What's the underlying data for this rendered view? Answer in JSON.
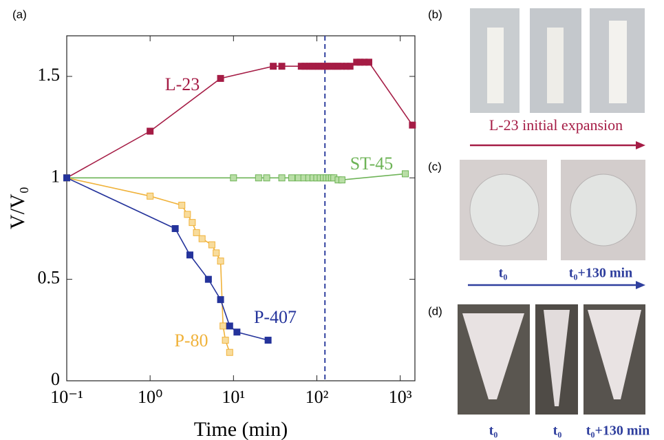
{
  "chart_data": {
    "type": "line",
    "panel_label": "(a)",
    "xlabel": "Time (min)",
    "ylabel": "V/V₀",
    "xscale": "log",
    "xlim": [
      0.1,
      1500
    ],
    "ylim": [
      0,
      1.7
    ],
    "xticks": [
      {
        "value": 0.1,
        "label": "10⁻¹"
      },
      {
        "value": 1,
        "label": "10⁰"
      },
      {
        "value": 10,
        "label": "10¹"
      },
      {
        "value": 100,
        "label": "10²"
      },
      {
        "value": 1000,
        "label": "10³"
      }
    ],
    "yticks": [
      0,
      0.5,
      1,
      1.5
    ],
    "vline_x": 125,
    "series": [
      {
        "name": "L-23",
        "color": "#a51c45",
        "marker_fill": "#a51c45",
        "x": [
          0.1,
          1,
          7,
          30,
          38,
          65,
          72,
          80,
          88,
          96,
          105,
          115,
          125,
          135,
          150,
          165,
          180,
          200,
          225,
          250,
          300,
          330,
          370,
          420,
          1400
        ],
        "values": [
          1,
          1.23,
          1.49,
          1.55,
          1.55,
          1.55,
          1.55,
          1.55,
          1.55,
          1.55,
          1.55,
          1.55,
          1.55,
          1.55,
          1.55,
          1.55,
          1.55,
          1.55,
          1.55,
          1.55,
          1.57,
          1.57,
          1.57,
          1.57,
          1.26
        ]
      },
      {
        "name": "ST-45",
        "color": "#6db356",
        "marker_fill": "#b9dea6",
        "x": [
          0.1,
          10,
          20,
          25,
          38,
          50,
          60,
          70,
          80,
          90,
          100,
          110,
          120,
          130,
          140,
          150,
          160,
          180,
          200,
          1150
        ],
        "values": [
          1,
          1,
          1,
          1,
          1,
          1,
          1,
          1,
          1,
          1,
          1,
          1,
          1,
          1,
          1,
          1,
          1,
          0.99,
          0.99,
          1.02
        ]
      },
      {
        "name": "P-80",
        "color": "#f0b23a",
        "marker_fill": "#f8dc9c",
        "x": [
          0.1,
          1,
          2.4,
          2.8,
          3.2,
          3.6,
          4.2,
          5.5,
          6.2,
          7,
          7.5,
          8,
          9
        ],
        "values": [
          1,
          0.91,
          0.865,
          0.82,
          0.78,
          0.73,
          0.7,
          0.67,
          0.63,
          0.59,
          0.27,
          0.2,
          0.14
        ]
      },
      {
        "name": "P-407",
        "color": "#24339b",
        "marker_fill": "#24339b",
        "x": [
          0.1,
          2,
          3,
          5,
          7,
          9,
          11,
          26
        ],
        "values": [
          1,
          0.75,
          0.62,
          0.5,
          0.4,
          0.27,
          0.24,
          0.2
        ]
      }
    ]
  },
  "panels": {
    "b": {
      "label": "(b)",
      "caption": "L-23 initial expansion"
    },
    "c": {
      "label": "(c)",
      "captions": [
        "t₀",
        "t₀+130 min"
      ]
    },
    "d": {
      "label": "(d)",
      "captions": [
        "t₀",
        "t₀",
        "t₀+130 min"
      ]
    }
  }
}
